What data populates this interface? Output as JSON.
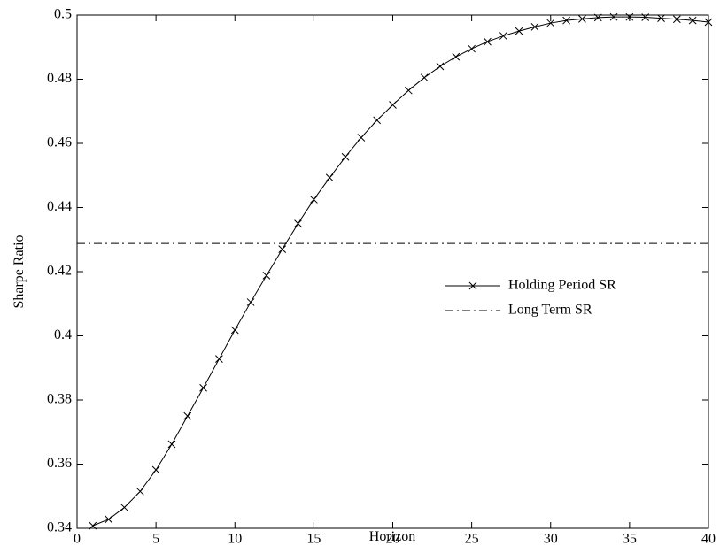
{
  "chart_data": {
    "type": "line",
    "xlabel": "Horizon",
    "ylabel": "Sharpe Ratio",
    "xlim": [
      0,
      40
    ],
    "xticks": [
      0,
      5,
      10,
      15,
      20,
      25,
      30,
      35,
      40
    ],
    "ylim": [
      0.34,
      0.5
    ],
    "yticks": [
      0.34,
      0.36,
      0.38,
      0.4,
      0.42,
      0.44,
      0.46,
      0.48,
      0.5
    ],
    "grid": false,
    "legend": "right",
    "series": [
      {
        "name": "Holding Period SR",
        "color": "#000000",
        "style": "solid",
        "marker": "x",
        "x": [
          1,
          2,
          3,
          4,
          5,
          6,
          7,
          8,
          9,
          10,
          11,
          12,
          13,
          14,
          15,
          16,
          17,
          18,
          19,
          20,
          21,
          22,
          23,
          24,
          25,
          26,
          27,
          28,
          29,
          30,
          31,
          32,
          33,
          34,
          35,
          36,
          37,
          38,
          39,
          40
        ],
        "values": [
          0.3408,
          0.3428,
          0.3465,
          0.3515,
          0.3582,
          0.3662,
          0.375,
          0.3838,
          0.3928,
          0.4018,
          0.4105,
          0.4188,
          0.427,
          0.435,
          0.4425,
          0.4493,
          0.4558,
          0.4618,
          0.4672,
          0.472,
          0.4765,
          0.4805,
          0.484,
          0.487,
          0.4895,
          0.4917,
          0.4935,
          0.495,
          0.4963,
          0.4975,
          0.4983,
          0.4988,
          0.4992,
          0.4994,
          0.4994,
          0.4993,
          0.499,
          0.4987,
          0.4983,
          0.4978
        ]
      },
      {
        "name": "Long Term SR",
        "color": "#000000",
        "style": "dashdot",
        "marker": null,
        "x": [
          0,
          40
        ],
        "values": [
          0.4288,
          0.4288
        ]
      }
    ]
  }
}
